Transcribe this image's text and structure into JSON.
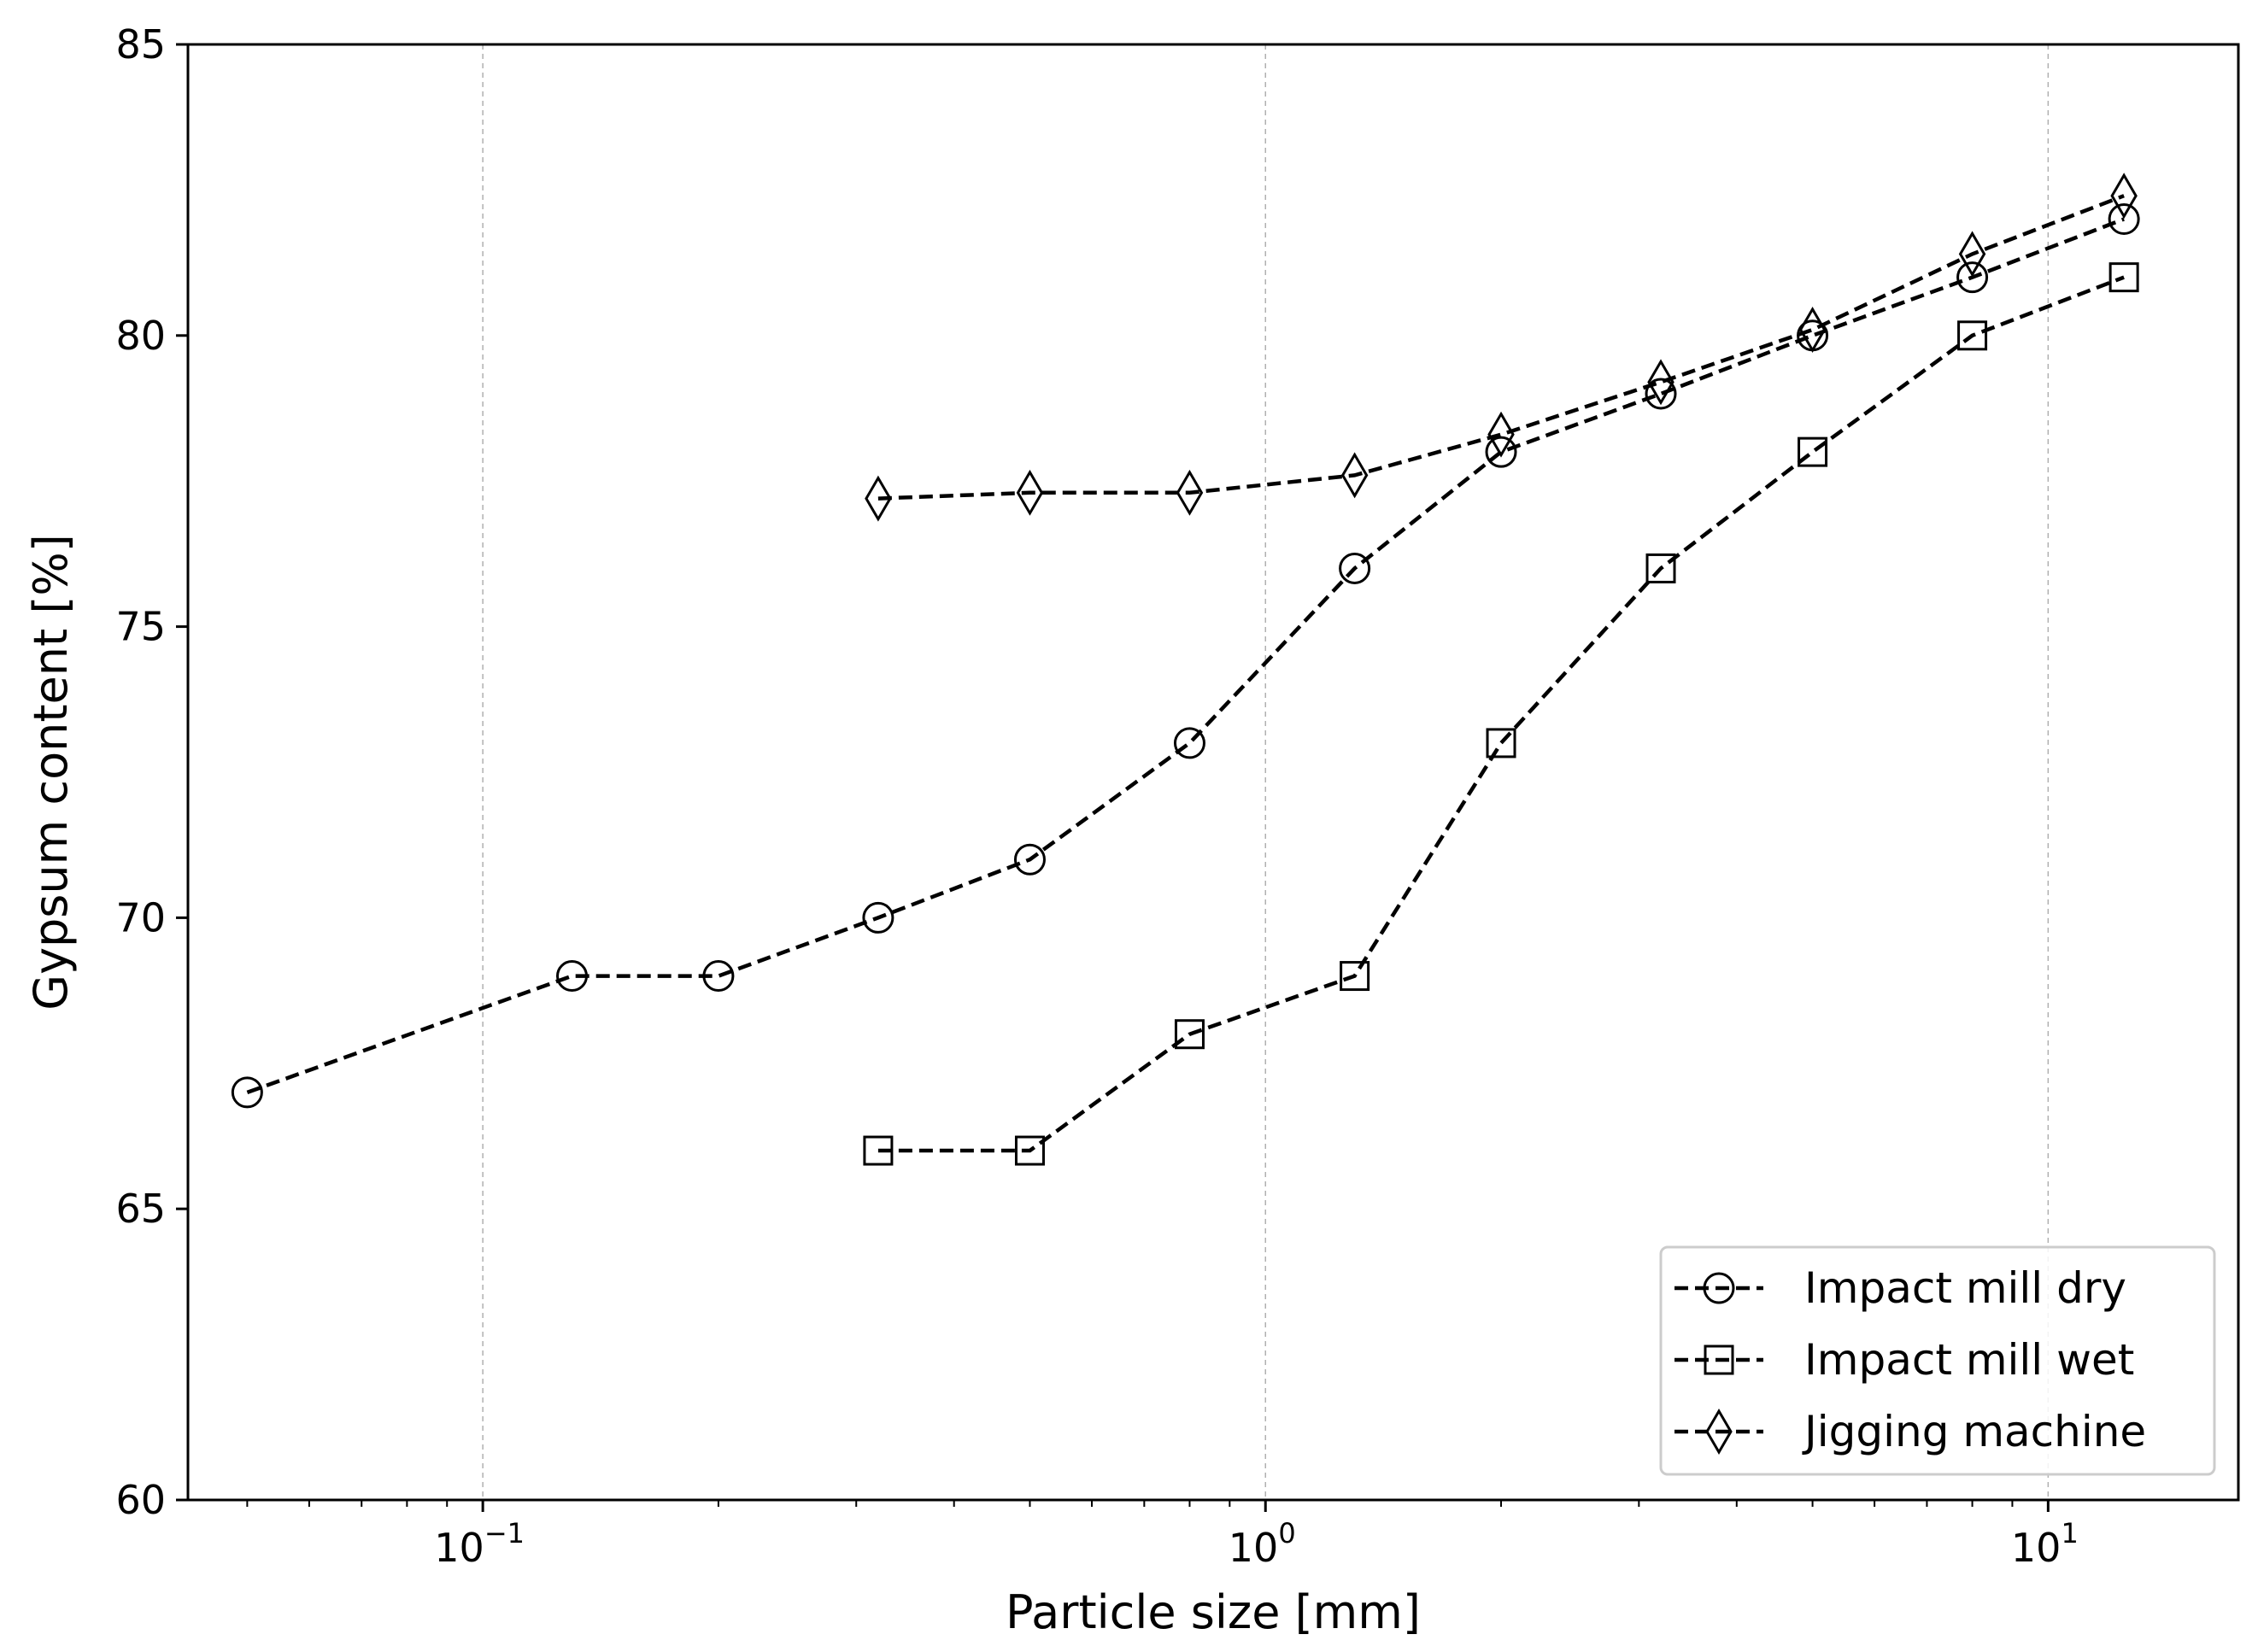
{
  "chart_data": {
    "type": "line",
    "title": "",
    "xlabel": "Particle size [mm]",
    "ylabel": "Gypsum content [%]",
    "xscale": "log",
    "xlim": [
      0.042,
      17.5
    ],
    "ylim": [
      60,
      85
    ],
    "grid": "x-major-dashed",
    "legend_position": "lower-right",
    "x_ticks": [
      {
        "base": "10",
        "exp": "−1",
        "value": 0.1
      },
      {
        "base": "10",
        "exp": "0",
        "value": 1
      },
      {
        "base": "10",
        "exp": "1",
        "value": 10
      }
    ],
    "y_ticks": [
      {
        "label": "60",
        "value": 60
      },
      {
        "label": "65",
        "value": 65
      },
      {
        "label": "70",
        "value": 70
      },
      {
        "label": "75",
        "value": 75
      },
      {
        "label": "80",
        "value": 80
      },
      {
        "label": "85",
        "value": 85
      }
    ],
    "series": [
      {
        "name": "Impact mill dry",
        "marker": "circle",
        "line_style": "dashed",
        "color": "#000000",
        "points": [
          [
            0.05,
            67
          ],
          [
            0.13,
            69
          ],
          [
            0.2,
            69
          ],
          [
            0.32,
            70
          ],
          [
            0.5,
            71
          ],
          [
            0.8,
            73
          ],
          [
            1.3,
            76
          ],
          [
            2.0,
            78
          ],
          [
            3.2,
            79
          ],
          [
            5.0,
            80
          ],
          [
            8.0,
            81
          ],
          [
            12.5,
            82
          ]
        ]
      },
      {
        "name": "Impact mill wet",
        "marker": "square",
        "line_style": "dashed",
        "color": "#000000",
        "points": [
          [
            0.32,
            66
          ],
          [
            0.5,
            66
          ],
          [
            0.8,
            68
          ],
          [
            1.3,
            69
          ],
          [
            2.0,
            73
          ],
          [
            3.2,
            76
          ],
          [
            5.0,
            78
          ],
          [
            8.0,
            80
          ],
          [
            12.5,
            81
          ]
        ]
      },
      {
        "name": "Jigging machine",
        "marker": "diamond",
        "line_style": "dashed",
        "color": "#000000",
        "points": [
          [
            0.32,
            77.2
          ],
          [
            0.5,
            77.3
          ],
          [
            0.8,
            77.3
          ],
          [
            1.3,
            77.6
          ],
          [
            2.0,
            78.3
          ],
          [
            3.2,
            79.2
          ],
          [
            5.0,
            80.1
          ],
          [
            8.0,
            81.4
          ],
          [
            12.5,
            82.4
          ]
        ]
      }
    ]
  }
}
